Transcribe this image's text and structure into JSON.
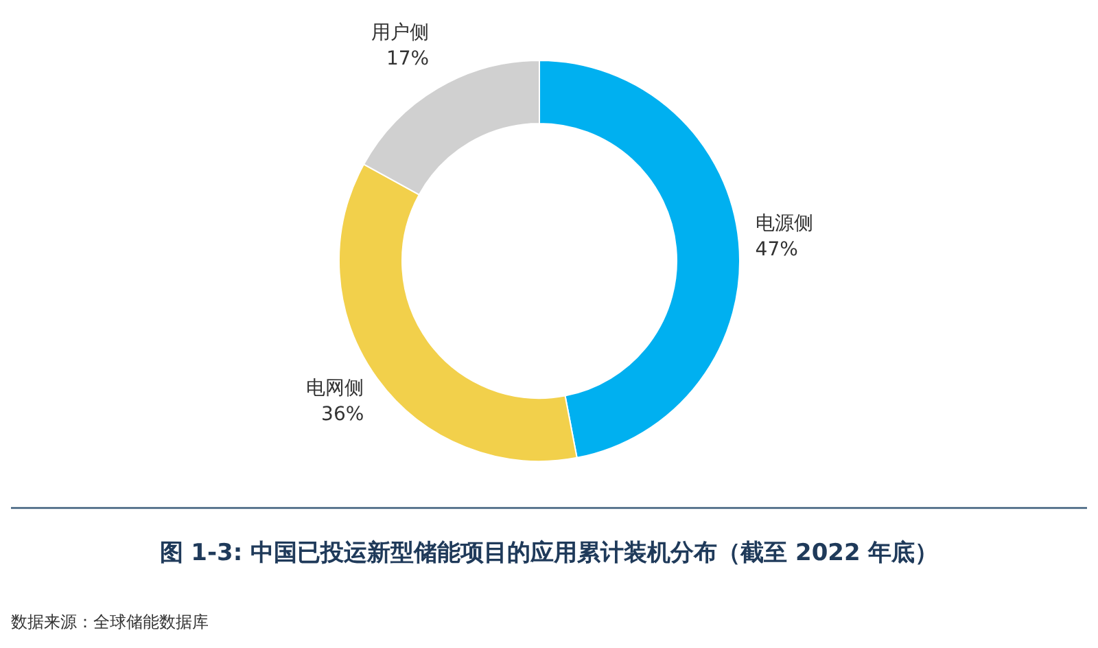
{
  "chart_data": {
    "type": "donut",
    "title": "图 1-3: 中国已投运新型储能项目的应用累计装机分布（截至 2022 年底）",
    "categories": [
      "电源侧",
      "电网侧",
      "用户侧"
    ],
    "values": [
      47,
      36,
      17
    ],
    "value_labels": [
      "47%",
      "36%",
      "17%"
    ],
    "colors": [
      "#00b0f0",
      "#f2d04b",
      "#d0d0d0"
    ],
    "annotations": [
      "数据来源：全球储能数据库"
    ]
  }
}
